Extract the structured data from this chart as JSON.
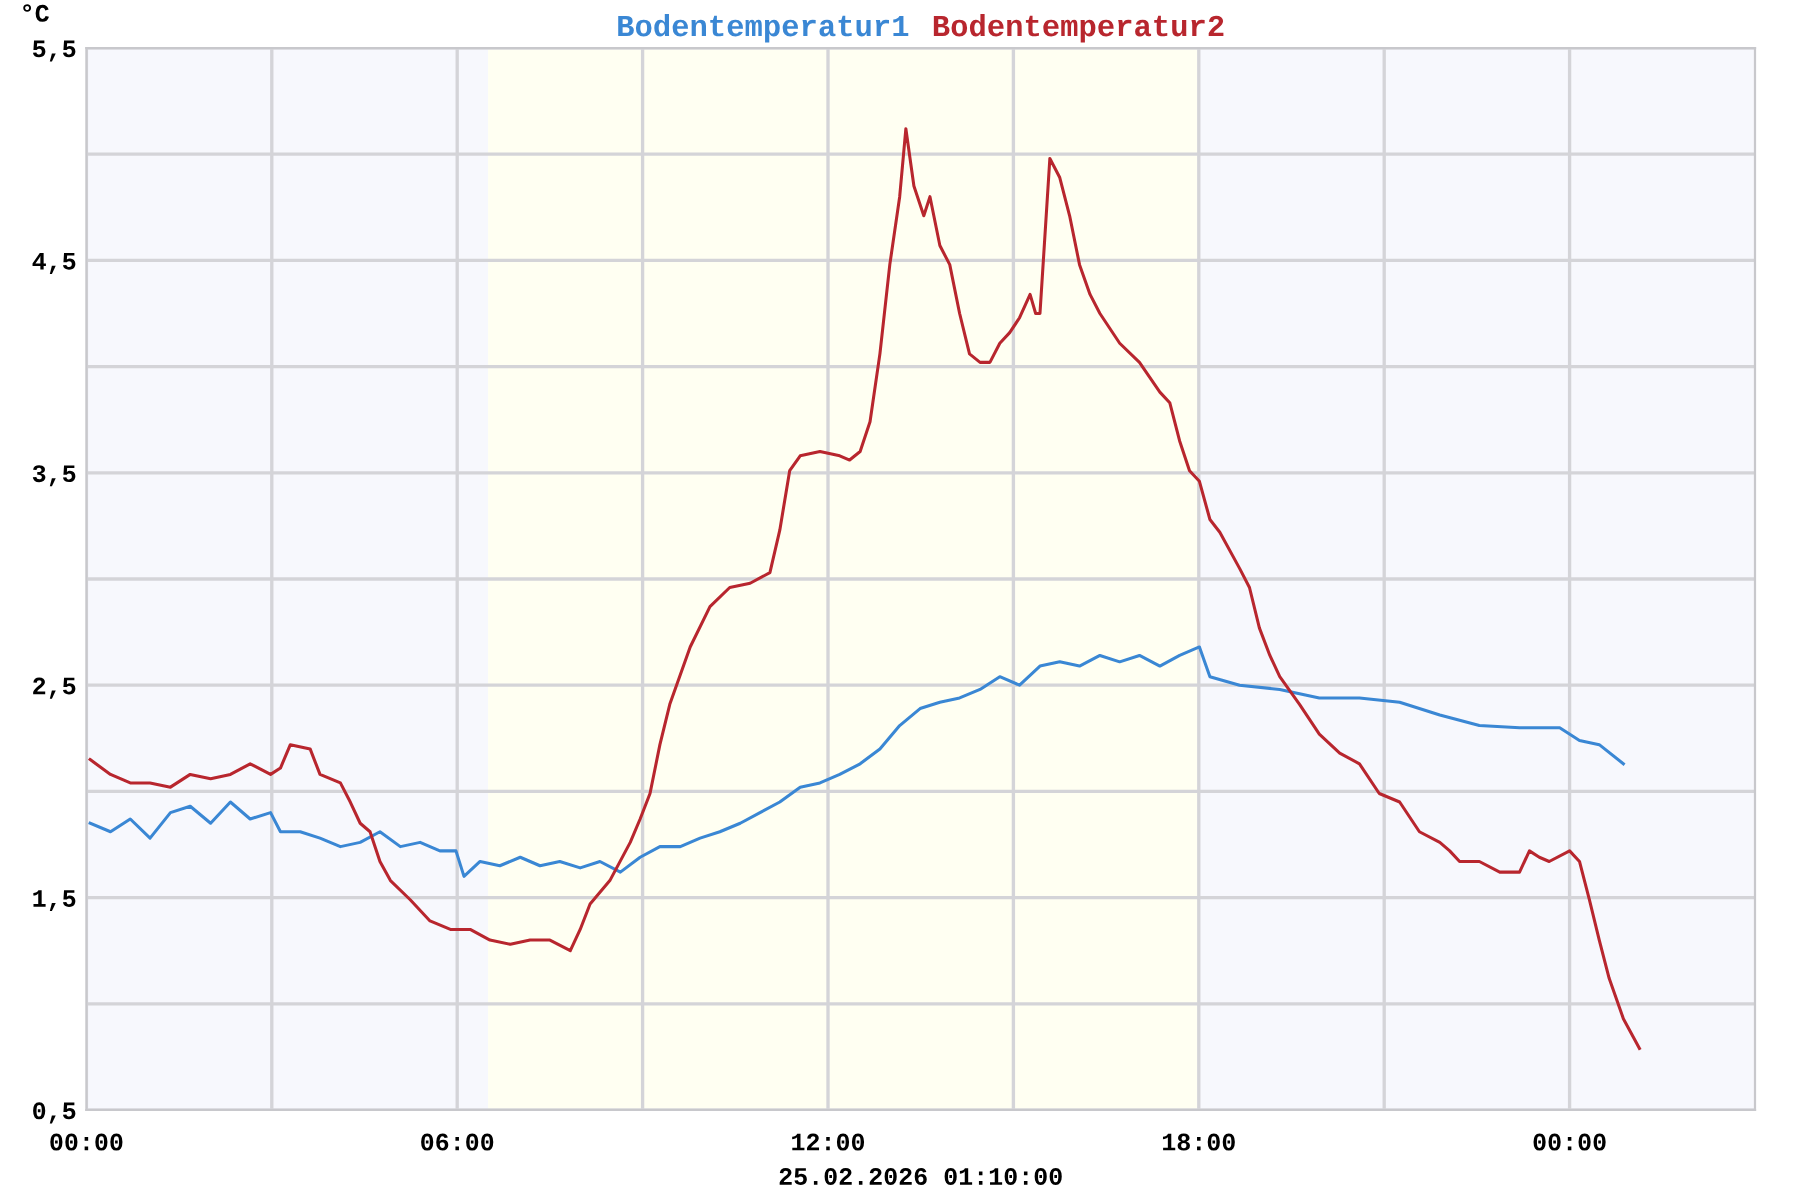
{
  "chart_data": {
    "type": "line",
    "xlabel": "25.02.2026 01:10:00",
    "ylabel": "°C",
    "xlim": [
      0,
      27
    ],
    "ylim": [
      0.5,
      5.5
    ],
    "xticks": [
      {
        "value": 0,
        "label": "00:00"
      },
      {
        "value": 3,
        "label": null
      },
      {
        "value": 6,
        "label": "06:00"
      },
      {
        "value": 9,
        "label": null
      },
      {
        "value": 12,
        "label": "12:00"
      },
      {
        "value": 15,
        "label": null
      },
      {
        "value": 18,
        "label": "18:00"
      },
      {
        "value": 21,
        "label": null
      },
      {
        "value": 24,
        "label": "00:00"
      }
    ],
    "yticks": [
      {
        "value": 0.5,
        "label": "0,5"
      },
      {
        "value": 1.0,
        "label": null
      },
      {
        "value": 1.5,
        "label": "1,5"
      },
      {
        "value": 2.0,
        "label": null
      },
      {
        "value": 2.5,
        "label": "2,5"
      },
      {
        "value": 3.0,
        "label": null
      },
      {
        "value": 3.5,
        "label": "3,5"
      },
      {
        "value": 4.0,
        "label": null
      },
      {
        "value": 4.5,
        "label": "4,5"
      },
      {
        "value": 5.0,
        "label": null
      },
      {
        "value": 5.5,
        "label": "5,5"
      }
    ],
    "grid": true,
    "legend": "top",
    "bands": [
      {
        "axis": "x",
        "from": 6.5,
        "to": 18.0,
        "color": "#fffff2"
      }
    ],
    "series": [
      {
        "name": "Bodentemperatur1",
        "color": "#3a87d4",
        "x": [
          0.06,
          0.39,
          0.71,
          1.03,
          1.36,
          1.68,
          2.01,
          2.33,
          2.65,
          2.98,
          3.14,
          3.46,
          3.78,
          4.11,
          4.43,
          4.75,
          5.08,
          5.4,
          5.72,
          5.98,
          6.11,
          6.37,
          6.69,
          7.02,
          7.34,
          7.66,
          7.99,
          8.31,
          8.64,
          8.96,
          9.28,
          9.61,
          9.93,
          10.25,
          10.58,
          10.9,
          11.22,
          11.55,
          11.87,
          12.19,
          12.52,
          12.84,
          13.16,
          13.49,
          13.81,
          14.13,
          14.46,
          14.78,
          15.1,
          15.43,
          15.75,
          16.07,
          16.4,
          16.72,
          17.04,
          17.37,
          17.69,
          18.01,
          18.18,
          18.66,
          19.31,
          19.95,
          20.6,
          21.25,
          21.9,
          22.54,
          23.19,
          23.84,
          24.16,
          24.48,
          24.87
        ],
        "values": [
          1.85,
          1.81,
          1.87,
          1.78,
          1.9,
          1.93,
          1.85,
          1.95,
          1.87,
          1.9,
          1.81,
          1.81,
          1.78,
          1.74,
          1.76,
          1.81,
          1.74,
          1.76,
          1.72,
          1.72,
          1.6,
          1.67,
          1.65,
          1.69,
          1.65,
          1.67,
          1.64,
          1.67,
          1.62,
          1.69,
          1.74,
          1.74,
          1.78,
          1.81,
          1.85,
          1.9,
          1.95,
          2.02,
          2.04,
          2.08,
          2.13,
          2.2,
          2.31,
          2.39,
          2.42,
          2.44,
          2.48,
          2.54,
          2.5,
          2.59,
          2.61,
          2.59,
          2.64,
          2.61,
          2.64,
          2.59,
          2.64,
          2.68,
          2.54,
          2.5,
          2.48,
          2.44,
          2.44,
          2.42,
          2.36,
          2.31,
          2.3,
          2.3,
          2.24,
          2.22,
          2.13
        ]
      },
      {
        "name": "Bodentemperatur2",
        "color": "#b8262e",
        "x": [
          0.06,
          0.39,
          0.71,
          1.03,
          1.36,
          1.68,
          2.01,
          2.33,
          2.65,
          2.98,
          3.14,
          3.3,
          3.62,
          3.78,
          4.11,
          4.27,
          4.43,
          4.59,
          4.75,
          4.92,
          5.24,
          5.56,
          5.89,
          6.21,
          6.53,
          6.86,
          7.18,
          7.5,
          7.83,
          7.99,
          8.15,
          8.47,
          8.8,
          8.96,
          9.12,
          9.28,
          9.44,
          9.77,
          10.09,
          10.41,
          10.74,
          11.06,
          11.22,
          11.38,
          11.55,
          11.87,
          12.19,
          12.35,
          12.52,
          12.68,
          12.84,
          13.0,
          13.16,
          13.26,
          13.39,
          13.55,
          13.65,
          13.81,
          13.97,
          14.13,
          14.29,
          14.46,
          14.62,
          14.78,
          14.94,
          15.1,
          15.27,
          15.36,
          15.43,
          15.59,
          15.75,
          15.91,
          16.07,
          16.24,
          16.4,
          16.72,
          17.04,
          17.37,
          17.53,
          17.69,
          17.85,
          18.01,
          18.18,
          18.34,
          18.66,
          18.82,
          18.98,
          19.15,
          19.31,
          19.63,
          19.95,
          20.28,
          20.6,
          20.92,
          21.25,
          21.57,
          21.9,
          22.06,
          22.22,
          22.54,
          22.87,
          23.19,
          23.35,
          23.51,
          23.67,
          24.0,
          24.16,
          24.32,
          24.48,
          24.64,
          24.87,
          25.13
        ],
        "values": [
          2.15,
          2.08,
          2.04,
          2.04,
          2.02,
          2.08,
          2.06,
          2.08,
          2.13,
          2.08,
          2.11,
          2.22,
          2.2,
          2.08,
          2.04,
          1.95,
          1.85,
          1.81,
          1.67,
          1.58,
          1.49,
          1.39,
          1.35,
          1.35,
          1.3,
          1.28,
          1.3,
          1.3,
          1.25,
          1.35,
          1.47,
          1.58,
          1.76,
          1.87,
          1.99,
          2.22,
          2.41,
          2.68,
          2.87,
          2.96,
          2.98,
          3.03,
          3.23,
          3.51,
          3.58,
          3.6,
          3.58,
          3.56,
          3.6,
          3.74,
          4.06,
          4.48,
          4.8,
          5.12,
          4.85,
          4.71,
          4.8,
          4.57,
          4.48,
          4.25,
          4.06,
          4.02,
          4.02,
          4.11,
          4.16,
          4.23,
          4.34,
          4.25,
          4.25,
          4.98,
          4.89,
          4.71,
          4.48,
          4.34,
          4.25,
          4.11,
          4.02,
          3.88,
          3.83,
          3.65,
          3.51,
          3.46,
          3.28,
          3.22,
          3.05,
          2.96,
          2.77,
          2.64,
          2.54,
          2.41,
          2.27,
          2.18,
          2.13,
          1.99,
          1.95,
          1.81,
          1.76,
          1.72,
          1.67,
          1.67,
          1.62,
          1.62,
          1.72,
          1.69,
          1.67,
          1.72,
          1.67,
          1.49,
          1.3,
          1.12,
          0.93,
          0.79
        ]
      }
    ]
  }
}
